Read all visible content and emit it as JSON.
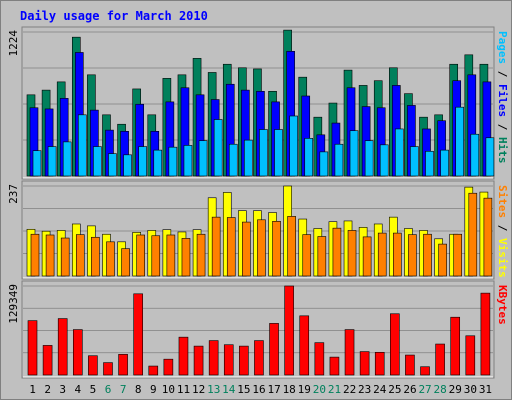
{
  "chart_data": {
    "type": "bar",
    "title": "Daily usage for March 2010",
    "colors": {
      "background": "#c0c0c0",
      "plot": "#c0c0c0",
      "title": "#0000ff",
      "hits": "#00805c",
      "files": "#0000ff",
      "pages": "#00c0ff",
      "visits": "#ffff00",
      "sites": "#ff8000",
      "kbytes": "#ff0000",
      "weekend": "#00805c",
      "weekday": "#000000"
    },
    "categories": [
      "1",
      "2",
      "3",
      "4",
      "5",
      "6",
      "7",
      "8",
      "9",
      "10",
      "11",
      "12",
      "13",
      "14",
      "15",
      "16",
      "17",
      "18",
      "19",
      "20",
      "21",
      "22",
      "23",
      "24",
      "25",
      "26",
      "27",
      "28",
      "29",
      "30",
      "31"
    ],
    "weekend_days": [
      "6",
      "7",
      "13",
      "14",
      "20",
      "21",
      "27",
      "28"
    ],
    "panels": [
      {
        "id": "hits",
        "ymax_label": "1224",
        "ymax": 1224,
        "side_label": [
          "Pages",
          " / ",
          "Files",
          " / ",
          "Hits"
        ],
        "side_colors": [
          "#00c0ff",
          "#000000",
          "#0000ff",
          "#000000",
          "#00805c"
        ],
        "series": [
          {
            "name": "Hits",
            "values": [
              690,
              730,
              800,
              1180,
              860,
              520,
              440,
              740,
              520,
              830,
              860,
              1000,
              880,
              950,
              920,
              910,
              720,
              1240,
              840,
              500,
              620,
              900,
              770,
              810,
              920,
              700,
              500,
              520,
              950,
              1030,
              950
            ]
          },
          {
            "name": "Files",
            "values": [
              580,
              570,
              660,
              1050,
              560,
              390,
              380,
              610,
              380,
              630,
              750,
              690,
              650,
              780,
              730,
              720,
              630,
              1060,
              680,
              350,
              450,
              750,
              590,
              580,
              770,
              600,
              400,
              470,
              810,
              860,
              800
            ]
          },
          {
            "name": "Pages",
            "values": [
              215,
              250,
              290,
              520,
              250,
              190,
              180,
              250,
              220,
              245,
              260,
              300,
              480,
              270,
              305,
              395,
              395,
              510,
              320,
              205,
              270,
              385,
              300,
              265,
              400,
              250,
              210,
              220,
              585,
              355,
              325
            ]
          }
        ]
      },
      {
        "id": "visits",
        "ymax_label": "237",
        "ymax": 237,
        "side_label": [
          "Sites",
          " / ",
          "Visits"
        ],
        "side_colors": [
          "#ff8000",
          "#000000",
          "#ffff00"
        ],
        "series": [
          {
            "name": "Visits",
            "values": [
              123,
              118,
              120,
              137,
              132,
              110,
              90,
              115,
              120,
              122,
              116,
              122,
              206,
              220,
              172,
              172,
              167,
              237,
              150,
              125,
              143,
              145,
              128,
              137,
              155,
              125,
              120,
              98,
              110,
              234,
              221
            ]
          },
          {
            "name": "Sites",
            "values": [
              110,
              108,
              100,
              109,
              102,
              90,
              72,
              108,
              106,
              108,
              99,
              110,
              155,
              154,
              142,
              148,
              144,
              157,
              109,
              104,
              126,
              120,
              103,
              113,
              113,
              109,
              110,
              84,
              110,
              218,
              205
            ]
          }
        ]
      },
      {
        "id": "kbytes",
        "ymax_label": "129349",
        "ymax": 129349,
        "side_label": [
          "KBytes"
        ],
        "side_colors": [
          "#ff0000"
        ],
        "series": [
          {
            "name": "KBytes",
            "values": [
              79000,
              43000,
              82000,
              66000,
              28000,
              18000,
              30000,
              118000,
              13000,
              23000,
              55000,
              42000,
              50000,
              44000,
              42000,
              50000,
              75000,
              129349,
              86000,
              47000,
              26000,
              66000,
              34000,
              33000,
              89000,
              29000,
              12000,
              45000,
              84000,
              57000,
              119000
            ]
          }
        ]
      }
    ]
  }
}
